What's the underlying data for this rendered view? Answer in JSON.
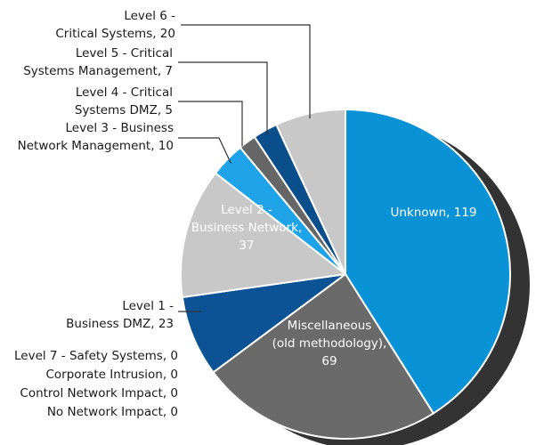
{
  "chart_data": {
    "type": "pie",
    "slices": [
      {
        "label": "Unknown",
        "value": 119,
        "color": "#0A92D6"
      },
      {
        "label": "Miscellaneous (old methodology)",
        "value": 69,
        "color": "#6A6A6A"
      },
      {
        "label": "Level 1 - Business DMZ",
        "value": 23,
        "color": "#0B5394"
      },
      {
        "label": "Level 2 - Business Network",
        "value": 37,
        "color": "#C8C8C8"
      },
      {
        "label": "Level 3 - Business Network Management",
        "value": 10,
        "color": "#1FA3E8"
      },
      {
        "label": "Level 4 - Critical Systems DMZ",
        "value": 5,
        "color": "#666666"
      },
      {
        "label": "Level 5 - Critical Systems Management",
        "value": 7,
        "color": "#0B4E8C"
      },
      {
        "label": "Level 6 - Critical Systems",
        "value": 20,
        "color": "#C8C8C8"
      }
    ],
    "labels": {
      "unknown": [
        "Unknown, 119"
      ],
      "misc": [
        "Miscellaneous",
        "(old methodology),",
        "69"
      ],
      "level1": [
        "Level 1 -",
        "Business DMZ, 23"
      ],
      "level2": [
        "Level 2 -",
        "Business Network,",
        "37"
      ],
      "level3": [
        "Level 3 - Business",
        "Network Management, 10"
      ],
      "level4": [
        "Level 4 - Critical",
        "Systems DMZ, 5"
      ],
      "level5": [
        "Level 5 - Critical",
        "Systems Management, 7"
      ],
      "level6": [
        "Level 6 -",
        "Critical Systems, 20"
      ]
    },
    "zero_items": [
      "Level 7 - Safety Systems, 0",
      "Corporate Intrusion, 0",
      "Control Network Impact, 0",
      "No Network Impact, 0"
    ],
    "shadow_color": "#333333",
    "leader_color": "#333333"
  }
}
